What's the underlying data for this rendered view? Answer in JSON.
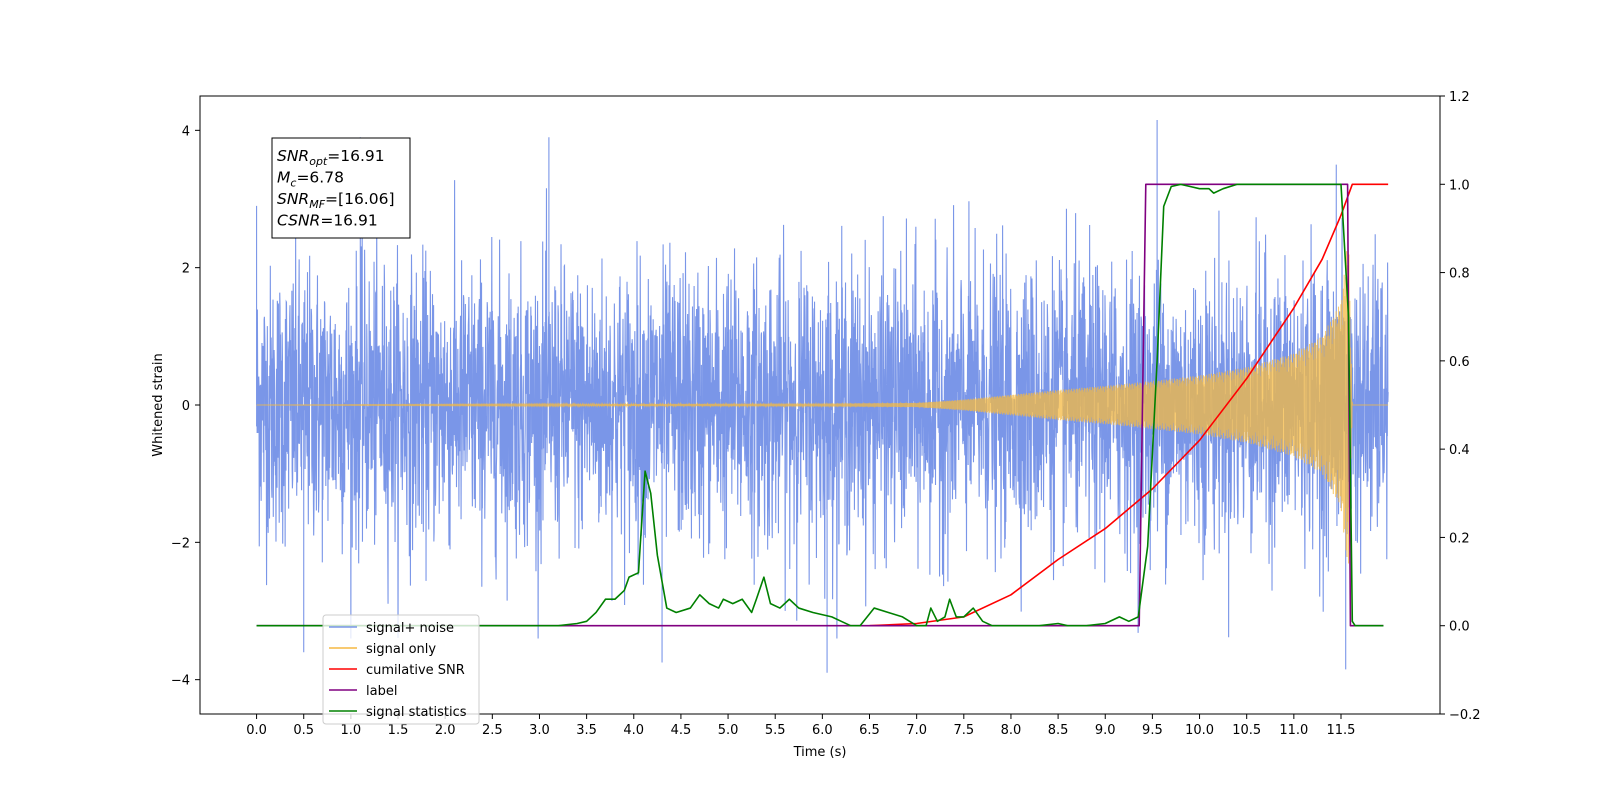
{
  "chart_data": {
    "type": "line",
    "title": "",
    "xlabel": "Time (s)",
    "ylabel": "Whitened strain",
    "y2label": "",
    "xlim": [
      -0.6,
      12.55
    ],
    "ylim": [
      -4.5,
      4.5
    ],
    "y2lim": [
      -0.2,
      1.2
    ],
    "x_ticks": [
      0.0,
      0.5,
      1.0,
      1.5,
      2.0,
      2.5,
      3.0,
      3.5,
      4.0,
      4.5,
      5.0,
      5.5,
      6.0,
      6.5,
      7.0,
      7.5,
      8.0,
      8.5,
      9.0,
      9.5,
      10.0,
      10.5,
      11.0,
      11.5
    ],
    "x_tick_labels": [
      "0.0",
      "0.5",
      "1.0",
      "1.5",
      "2.0",
      "2.5",
      "3.0",
      "3.5",
      "4.0",
      "4.5",
      "5.0",
      "5.5",
      "6.0",
      "6.5",
      "7.0",
      "7.5",
      "8.0",
      "8.5",
      "9.0",
      "9.5",
      "10.0",
      "10.5",
      "11.0",
      "11.5"
    ],
    "y_ticks": [
      -4,
      -2,
      0,
      2,
      4
    ],
    "y_tick_labels": [
      "−4",
      "−2",
      "0",
      "2",
      "4"
    ],
    "y2_ticks": [
      -0.2,
      0.0,
      0.2,
      0.4,
      0.6,
      0.8,
      1.0,
      1.2
    ],
    "y2_tick_labels": [
      "−0.2",
      "0.0",
      "0.2",
      "0.4",
      "0.6",
      "0.8",
      "1.0",
      "1.2"
    ],
    "grid": false,
    "legend_position": "lower-left",
    "annotation": {
      "lines": [
        {
          "main": "SNR",
          "sub": "opt",
          "rest": "=16.91"
        },
        {
          "main": "M",
          "sub": "c",
          "rest": "=6.78"
        },
        {
          "main": "SNR",
          "sub": "MF",
          "rest": "=[16.06]"
        },
        {
          "main": "CSNR",
          "sub": "",
          "rest": "=16.91"
        }
      ]
    },
    "series": [
      {
        "name": "signal+ noise",
        "axis": "left",
        "color": "#7a96e8",
        "kind": "noise",
        "x_range": [
          0.0,
          12.0
        ],
        "typical_amplitude": 1.0,
        "peak_points": [
          [
            0.0,
            2.9
          ],
          [
            0.5,
            -3.6
          ],
          [
            1.1,
            3.9
          ],
          [
            3.1,
            3.9
          ],
          [
            4.3,
            -3.75
          ],
          [
            6.05,
            -3.9
          ],
          [
            9.55,
            4.15
          ],
          [
            11.55,
            -3.85
          ],
          [
            11.45,
            3.5
          ]
        ]
      },
      {
        "name": "signal only",
        "axis": "left",
        "color": "#f5b942",
        "kind": "chirp",
        "x_range": [
          0.0,
          12.0
        ],
        "merger_time": 11.6,
        "amplitude_points": [
          [
            0.0,
            0.0
          ],
          [
            6.0,
            0.02
          ],
          [
            7.0,
            0.03
          ],
          [
            7.5,
            0.08
          ],
          [
            8.0,
            0.15
          ],
          [
            8.5,
            0.22
          ],
          [
            9.0,
            0.28
          ],
          [
            9.5,
            0.35
          ],
          [
            10.0,
            0.43
          ],
          [
            10.5,
            0.55
          ],
          [
            11.0,
            0.75
          ],
          [
            11.3,
            1.0
          ],
          [
            11.5,
            1.5
          ],
          [
            11.58,
            2.5
          ],
          [
            11.62,
            0.0
          ],
          [
            12.0,
            0.0
          ]
        ]
      },
      {
        "name": "cumilative SNR",
        "axis": "right",
        "color": "#ff0000",
        "points": [
          [
            6.5,
            0.0
          ],
          [
            7.0,
            0.005
          ],
          [
            7.5,
            0.02
          ],
          [
            8.0,
            0.07
          ],
          [
            8.5,
            0.15
          ],
          [
            9.0,
            0.22
          ],
          [
            9.5,
            0.31
          ],
          [
            10.0,
            0.42
          ],
          [
            10.5,
            0.56
          ],
          [
            11.0,
            0.72
          ],
          [
            11.3,
            0.83
          ],
          [
            11.5,
            0.93
          ],
          [
            11.62,
            1.0
          ],
          [
            12.0,
            1.0
          ]
        ]
      },
      {
        "name": "label",
        "axis": "right",
        "color": "#800080",
        "points": [
          [
            0.0,
            0.0
          ],
          [
            9.36,
            0.0
          ],
          [
            9.43,
            1.0
          ],
          [
            11.57,
            1.0
          ],
          [
            11.6,
            0.0
          ],
          [
            11.95,
            0.0
          ]
        ]
      },
      {
        "name": "signal statistics",
        "axis": "right",
        "color": "#008000",
        "points": [
          [
            0.0,
            0.0
          ],
          [
            3.2,
            0.0
          ],
          [
            3.4,
            0.005
          ],
          [
            3.5,
            0.01
          ],
          [
            3.6,
            0.03
          ],
          [
            3.7,
            0.06
          ],
          [
            3.8,
            0.06
          ],
          [
            3.9,
            0.08
          ],
          [
            3.95,
            0.11
          ],
          [
            4.05,
            0.12
          ],
          [
            4.08,
            0.22
          ],
          [
            4.12,
            0.35
          ],
          [
            4.18,
            0.3
          ],
          [
            4.25,
            0.16
          ],
          [
            4.35,
            0.04
          ],
          [
            4.45,
            0.03
          ],
          [
            4.6,
            0.04
          ],
          [
            4.7,
            0.07
          ],
          [
            4.8,
            0.05
          ],
          [
            4.9,
            0.04
          ],
          [
            4.95,
            0.06
          ],
          [
            5.05,
            0.05
          ],
          [
            5.15,
            0.06
          ],
          [
            5.25,
            0.03
          ],
          [
            5.3,
            0.06
          ],
          [
            5.38,
            0.11
          ],
          [
            5.45,
            0.05
          ],
          [
            5.55,
            0.04
          ],
          [
            5.65,
            0.06
          ],
          [
            5.75,
            0.04
          ],
          [
            5.9,
            0.03
          ],
          [
            6.1,
            0.02
          ],
          [
            6.2,
            0.01
          ],
          [
            6.3,
            0.0
          ],
          [
            6.4,
            0.0
          ],
          [
            6.55,
            0.04
          ],
          [
            6.7,
            0.03
          ],
          [
            6.85,
            0.02
          ],
          [
            7.0,
            0.0
          ],
          [
            7.1,
            0.0
          ],
          [
            7.15,
            0.04
          ],
          [
            7.22,
            0.01
          ],
          [
            7.3,
            0.02
          ],
          [
            7.35,
            0.06
          ],
          [
            7.42,
            0.02
          ],
          [
            7.5,
            0.02
          ],
          [
            7.6,
            0.04
          ],
          [
            7.7,
            0.01
          ],
          [
            7.8,
            0.0
          ],
          [
            8.0,
            0.0
          ],
          [
            8.3,
            0.0
          ],
          [
            8.5,
            0.005
          ],
          [
            8.6,
            0.0
          ],
          [
            8.8,
            0.0
          ],
          [
            9.0,
            0.005
          ],
          [
            9.15,
            0.02
          ],
          [
            9.25,
            0.01
          ],
          [
            9.35,
            0.02
          ],
          [
            9.45,
            0.18
          ],
          [
            9.55,
            0.6
          ],
          [
            9.62,
            0.95
          ],
          [
            9.7,
            0.995
          ],
          [
            9.8,
            1.0
          ],
          [
            9.9,
            0.995
          ],
          [
            10.0,
            0.99
          ],
          [
            10.1,
            0.99
          ],
          [
            10.15,
            0.98
          ],
          [
            10.25,
            0.99
          ],
          [
            10.4,
            1.0
          ],
          [
            11.5,
            1.0
          ],
          [
            11.58,
            0.7
          ],
          [
            11.62,
            0.01
          ],
          [
            11.65,
            0.0
          ],
          [
            11.95,
            0.0
          ]
        ]
      }
    ]
  }
}
